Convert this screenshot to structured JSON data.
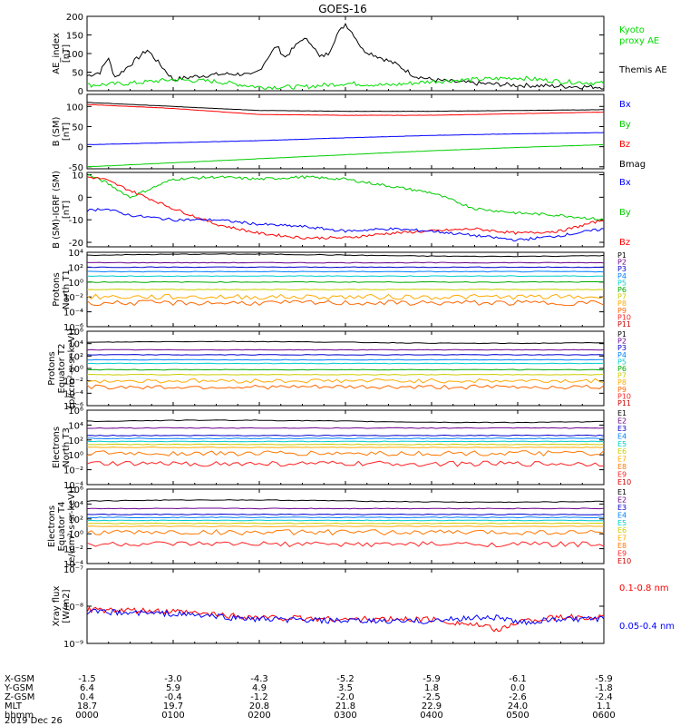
{
  "title": "GOES-16",
  "date": "2019 Dec 26",
  "colors": {
    "black": "#000000",
    "red": "#ff0000",
    "green": "#00cc00",
    "blue": "#0000ff"
  },
  "chart_data": [
    {
      "type": "line",
      "ylabel": [
        "AE_index",
        "[nT]"
      ],
      "ylim": [
        0,
        200
      ],
      "yticks": [
        "0",
        "50",
        "100",
        "150",
        "200"
      ],
      "legend": [
        {
          "name": "Kyoto",
          "color": "#00dd00"
        },
        {
          "name": "proxy AE",
          "color": "#00dd00"
        },
        {
          "name": "Themis AE",
          "color": "#000000"
        }
      ],
      "series": [
        {
          "name": "Themis AE",
          "color": "#000000",
          "x": [
            0,
            0.15,
            0.25,
            0.3,
            0.35,
            0.5,
            0.7,
            1.0,
            1.3,
            1.6,
            1.8,
            1.9,
            2.0,
            2.1,
            2.2,
            2.3,
            2.5,
            2.6,
            2.7,
            2.8,
            2.9,
            3.0,
            3.1,
            3.2,
            3.4,
            3.6,
            3.8,
            4.0,
            4.2,
            4.5,
            5.0,
            5.5,
            6.0
          ],
          "y": [
            40,
            50,
            90,
            45,
            40,
            70,
            110,
            30,
            40,
            45,
            45,
            40,
            55,
            90,
            120,
            90,
            140,
            130,
            90,
            100,
            150,
            180,
            150,
            110,
            90,
            70,
            40,
            30,
            25,
            20,
            15,
            12,
            10
          ]
        },
        {
          "name": "Kyoto proxy AE",
          "color": "#00dd00",
          "x": [
            0,
            0.5,
            1.0,
            1.5,
            2.0,
            2.5,
            3.0,
            3.5,
            4.0,
            4.5,
            5.0,
            5.5,
            6.0
          ],
          "y": [
            15,
            20,
            30,
            25,
            10,
            10,
            20,
            15,
            25,
            30,
            35,
            25,
            20
          ]
        }
      ]
    },
    {
      "type": "line",
      "ylabel": [
        "B (SM)",
        "[nT]"
      ],
      "ylim": [
        -55,
        130
      ],
      "yticks": [
        "-50",
        "0",
        "50",
        "100"
      ],
      "legend": [
        {
          "name": "Bx",
          "color": "#0000ff"
        },
        {
          "name": "By",
          "color": "#00cc00"
        },
        {
          "name": "Bz",
          "color": "#ff0000"
        },
        {
          "name": "Bmag",
          "color": "#000000"
        }
      ],
      "series": [
        {
          "name": "Bmag",
          "color": "#000000",
          "x": [
            0,
            1,
            2,
            3,
            4,
            5,
            6
          ],
          "y": [
            110,
            100,
            90,
            88,
            88,
            90,
            92
          ]
        },
        {
          "name": "Bz",
          "color": "#ff0000",
          "x": [
            0,
            1,
            2,
            3,
            4,
            5,
            6
          ],
          "y": [
            105,
            95,
            80,
            78,
            78,
            82,
            86
          ]
        },
        {
          "name": "Bx",
          "color": "#0000ff",
          "x": [
            0,
            1,
            2,
            3,
            4,
            5,
            6
          ],
          "y": [
            5,
            10,
            15,
            22,
            28,
            32,
            35
          ]
        },
        {
          "name": "By",
          "color": "#00cc00",
          "x": [
            0,
            1,
            2,
            3,
            4,
            5,
            6
          ],
          "y": [
            -50,
            -40,
            -30,
            -20,
            -10,
            -2,
            5
          ]
        }
      ]
    },
    {
      "type": "line",
      "ylabel": [
        "B (SM)-IGRF (SM)",
        "[nT]"
      ],
      "ylim": [
        -22,
        11
      ],
      "yticks": [
        "-20",
        "-10",
        "0",
        "10"
      ],
      "legend": [
        {
          "name": "Bx",
          "color": "#0000ff"
        },
        {
          "name": "By",
          "color": "#00cc00"
        },
        {
          "name": "Bz",
          "color": "#ff0000"
        }
      ],
      "series": [
        {
          "name": "By",
          "color": "#00cc00",
          "x": [
            0,
            0.2,
            0.5,
            1.0,
            1.5,
            2.0,
            2.5,
            3.0,
            3.5,
            4.0,
            4.5,
            5.0,
            5.5,
            6.0
          ],
          "y": [
            10,
            7,
            0,
            8,
            9,
            8,
            9,
            8,
            5,
            2,
            -5,
            -7,
            -8,
            -10
          ]
        },
        {
          "name": "Bz",
          "color": "#ff0000",
          "x": [
            0,
            0.2,
            0.5,
            1.0,
            1.5,
            2.0,
            2.5,
            3.0,
            3.5,
            4.0,
            4.5,
            5.0,
            5.5,
            6.0
          ],
          "y": [
            9,
            8,
            3,
            -5,
            -12,
            -16,
            -18,
            -18,
            -16,
            -15,
            -14,
            -16,
            -15,
            -10
          ]
        },
        {
          "name": "Bx",
          "color": "#0000ff",
          "x": [
            0,
            0.2,
            0.5,
            1.0,
            1.5,
            2.0,
            2.5,
            3.0,
            3.5,
            4.0,
            4.5,
            5.0,
            5.5,
            6.0
          ],
          "y": [
            -6,
            -5,
            -8,
            -10,
            -10,
            -12,
            -13,
            -15,
            -14,
            -15,
            -17,
            -19,
            -17,
            -14
          ]
        }
      ]
    },
    {
      "type": "line",
      "ylabel": [
        "Protons",
        "North T1"
      ],
      "ylim_exp": [
        -6,
        4
      ],
      "yticks": [
        "10⁻⁶",
        "10⁻⁴",
        "10⁻²",
        "10⁰",
        "10²",
        "10⁴"
      ],
      "legend": [
        {
          "name": "P1",
          "color": "#000000"
        },
        {
          "name": "P2",
          "color": "#6b008b"
        },
        {
          "name": "P3",
          "color": "#0000cc"
        },
        {
          "name": "P4",
          "color": "#007fff"
        },
        {
          "name": "P5",
          "color": "#00cccc"
        },
        {
          "name": "P6",
          "color": "#00aa00"
        },
        {
          "name": "P7",
          "color": "#cccc00"
        },
        {
          "name": "P8",
          "color": "#ffaa00"
        },
        {
          "name": "P9",
          "color": "#ff6600"
        },
        {
          "name": "P10",
          "color": "#ff2222"
        },
        {
          "name": "P11",
          "color": "#cc0000"
        }
      ],
      "levels": [
        3.6,
        2.6,
        2.0,
        1.4,
        0.8,
        0.0,
        -1.0,
        -2.0,
        -2.8
      ]
    },
    {
      "type": "line",
      "ylabel": [
        "Protons",
        "Equator T2",
        "[p/(cm²-s-sr-keV)]"
      ],
      "ylim_exp": [
        -6,
        6
      ],
      "yticks": [
        "10⁻⁶",
        "10⁻⁴",
        "10⁻²",
        "10⁰",
        "10²",
        "10⁴",
        "10⁶"
      ],
      "legend": [
        {
          "name": "P1",
          "color": "#000000"
        },
        {
          "name": "P2",
          "color": "#6b008b"
        },
        {
          "name": "P3",
          "color": "#0000cc"
        },
        {
          "name": "P4",
          "color": "#007fff"
        },
        {
          "name": "P5",
          "color": "#00cccc"
        },
        {
          "name": "P6",
          "color": "#00aa00"
        },
        {
          "name": "P7",
          "color": "#cccc00"
        },
        {
          "name": "P8",
          "color": "#ffaa00"
        },
        {
          "name": "P9",
          "color": "#ff6600"
        },
        {
          "name": "P10",
          "color": "#ff2222"
        },
        {
          "name": "P11",
          "color": "#cc0000"
        }
      ],
      "levels": [
        4.2,
        3.0,
        2.2,
        1.4,
        0.8,
        -0.2,
        -1.0,
        -2.0,
        -3.0
      ]
    },
    {
      "type": "line",
      "ylabel": [
        "Electrons",
        "North T3"
      ],
      "ylim_exp": [
        -4,
        6
      ],
      "yticks": [
        "10⁻⁴",
        "10⁻²",
        "10⁰",
        "10²",
        "10⁴",
        "10⁶"
      ],
      "legend": [
        {
          "name": "E1",
          "color": "#000000"
        },
        {
          "name": "E2",
          "color": "#6b008b"
        },
        {
          "name": "E3",
          "color": "#0000cc"
        },
        {
          "name": "E4",
          "color": "#007fff"
        },
        {
          "name": "E5",
          "color": "#00cccc"
        },
        {
          "name": "E6",
          "color": "#cccc00"
        },
        {
          "name": "E7",
          "color": "#ffaa00"
        },
        {
          "name": "E8",
          "color": "#ff7700"
        },
        {
          "name": "E9",
          "color": "#ff2222"
        },
        {
          "name": "E10",
          "color": "#cc0000"
        }
      ],
      "levels": [
        4.5,
        3.6,
        2.6,
        2.2,
        1.8,
        1.4,
        1.0,
        0.2,
        -1.2
      ]
    },
    {
      "type": "line",
      "ylabel": [
        "Electrons",
        "Equator T4",
        "[e/(cm²-s-sr-keV)]"
      ],
      "ylim_exp": [
        -4,
        6
      ],
      "yticks": [
        "10⁻⁴",
        "10⁻²",
        "10⁰",
        "10²",
        "10⁴",
        "10⁶"
      ],
      "legend": [
        {
          "name": "E1",
          "color": "#000000"
        },
        {
          "name": "E2",
          "color": "#6b008b"
        },
        {
          "name": "E3",
          "color": "#0000cc"
        },
        {
          "name": "E4",
          "color": "#007fff"
        },
        {
          "name": "E5",
          "color": "#00cccc"
        },
        {
          "name": "E6",
          "color": "#cccc00"
        },
        {
          "name": "E7",
          "color": "#ffaa00"
        },
        {
          "name": "E8",
          "color": "#ff7700"
        },
        {
          "name": "E9",
          "color": "#ff2222"
        },
        {
          "name": "E10",
          "color": "#cc0000"
        }
      ],
      "levels": [
        4.4,
        3.4,
        2.6,
        2.2,
        1.8,
        1.4,
        1.0,
        0.2,
        -1.4
      ]
    },
    {
      "type": "line",
      "ylabel": [
        "Xray flux",
        "[W/m2]"
      ],
      "ylim_exp": [
        -9,
        -7
      ],
      "yticks": [
        "10⁻⁹",
        "10⁻⁸",
        "10⁻⁷"
      ],
      "legend": [
        {
          "name": "0.1-0.8 nm",
          "color": "#ff0000"
        },
        {
          "name": "0.05-0.4 nm",
          "color": "#0000ff"
        }
      ],
      "series": [
        {
          "name": "0.1-0.8 nm",
          "color": "#ff0000",
          "x": [
            0,
            1,
            2,
            3,
            4,
            4.5,
            4.8,
            5.0,
            5.5,
            6.0
          ],
          "y": [
            -8.1,
            -8.15,
            -8.3,
            -8.35,
            -8.35,
            -8.5,
            -8.65,
            -8.4,
            -8.3,
            -8.3
          ]
        },
        {
          "name": "0.05-0.4 nm",
          "color": "#0000ff",
          "x": [
            0,
            1,
            2,
            3,
            4,
            4.5,
            4.8,
            5.0,
            5.5,
            6.0
          ],
          "y": [
            -8.15,
            -8.2,
            -8.35,
            -8.4,
            -8.4,
            -8.3,
            -8.3,
            -8.45,
            -8.35,
            -8.35
          ]
        }
      ]
    }
  ],
  "footer": {
    "rows": [
      {
        "label": "X-GSM",
        "values": [
          "-1.5",
          "-3.0",
          "-4.3",
          "-5.2",
          "-5.9",
          "-6.1",
          "-5.9"
        ]
      },
      {
        "label": "Y-GSM",
        "values": [
          "6.4",
          "5.9",
          "4.9",
          "3.5",
          "1.8",
          "0.0",
          "-1.8"
        ]
      },
      {
        "label": "Z-GSM",
        "values": [
          "0.4",
          "-0.4",
          "-1.2",
          "-2.0",
          "-2.5",
          "-2.6",
          "-2.4"
        ]
      },
      {
        "label": "MLT",
        "values": [
          "18.7",
          "19.7",
          "20.8",
          "21.8",
          "22.9",
          "24.0",
          "1.1"
        ]
      },
      {
        "label": "hhmm",
        "values": [
          "0000",
          "0100",
          "0200",
          "0300",
          "0400",
          "0500",
          "0600"
        ]
      }
    ]
  }
}
